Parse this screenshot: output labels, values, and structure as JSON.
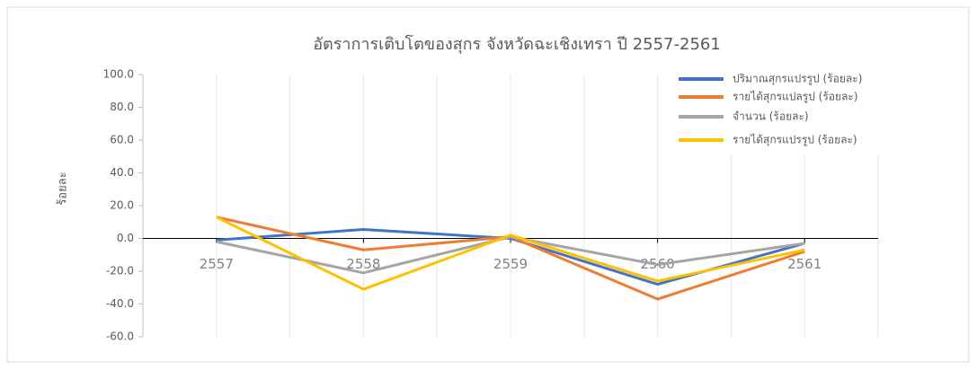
{
  "chart_data": {
    "type": "line",
    "title": "อัตราการเติบโตของสุกร จังหวัดฉะเชิงเทรา ปี 2557-2561",
    "y_label": "ร้อยละ",
    "categories": [
      "2557",
      "2558",
      "2559",
      "2560",
      "2561"
    ],
    "series": [
      {
        "name": "ปริมาณสุกรแปรรูป (ร้อยละ)",
        "color": "#4472c4",
        "values": [
          -1,
          5.5,
          0,
          -28,
          -3
        ]
      },
      {
        "name": "รายได้สุกรแปลรูป (ร้อยละ)",
        "color": "#ed7d31",
        "values": [
          13,
          -7,
          1,
          -37,
          -8
        ]
      },
      {
        "name": "จำนวน (ร้อยละ)",
        "color": "#a5a5a5",
        "values": [
          -2,
          -21,
          1,
          -16,
          -3
        ]
      },
      {
        "name": "รายได้สุกรแปรรูป (ร้อยละ)",
        "color": "#ffc000",
        "values": [
          13,
          -31,
          2,
          -26,
          -7
        ]
      }
    ],
    "ylim": [
      -60,
      100
    ],
    "yticks": [
      {
        "value": -60,
        "label": "-60.0"
      },
      {
        "value": -40,
        "label": "-40.0"
      },
      {
        "value": -20,
        "label": "-20.0"
      },
      {
        "value": 0,
        "label": "0.0"
      },
      {
        "value": 20,
        "label": "20.0"
      },
      {
        "value": 40,
        "label": "40.0"
      },
      {
        "value": 60,
        "label": "60.0"
      },
      {
        "value": 80,
        "label": "80.0"
      },
      {
        "value": 100,
        "label": "100.0"
      }
    ],
    "legend": "top-right"
  }
}
